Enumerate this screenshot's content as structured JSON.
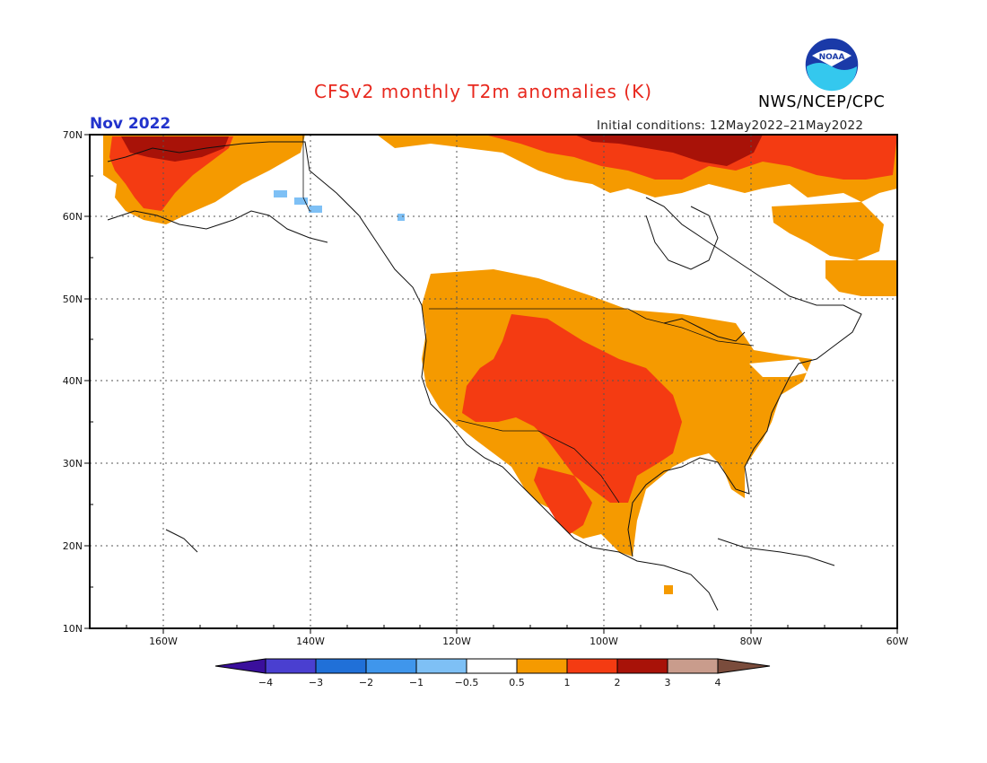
{
  "header": {
    "title": "CFSv2 monthly T2m anomalies (K)",
    "month": "Nov 2022",
    "initial_conditions": "Initial conditions: 12May2022–21May2022",
    "agency": "NWS/NCEP/CPC",
    "logo_text": "NOAA"
  },
  "map": {
    "region": "North America",
    "lon_range": [
      -170,
      -60
    ],
    "lat_range": [
      10,
      70
    ],
    "lon_ticks": [
      "160W",
      "140W",
      "120W",
      "100W",
      "80W",
      "60W"
    ],
    "lat_ticks": [
      "70N",
      "60N",
      "50N",
      "40N",
      "30N",
      "20N",
      "10N"
    ],
    "gridlines": true
  },
  "colorbar": {
    "labels": [
      "−4",
      "−3",
      "−2",
      "−1",
      "−0.5",
      "0.5",
      "1",
      "2",
      "3",
      "4"
    ],
    "colors": [
      "#3a0f9c",
      "#4a3fd0",
      "#2070d8",
      "#3f96ec",
      "#7ec0f5",
      "#ffffff",
      "#f59a00",
      "#f43b12",
      "#a81208",
      "#c99c8c",
      "#7a4c3c"
    ]
  }
}
